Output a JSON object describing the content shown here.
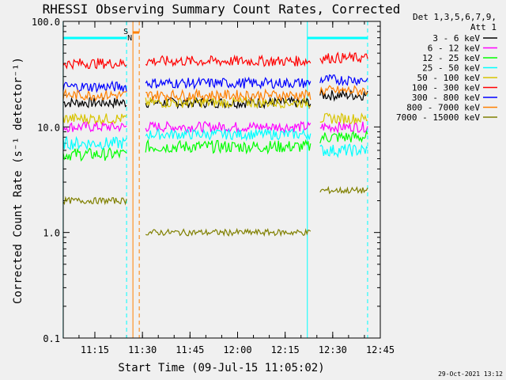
{
  "chart_data": {
    "type": "line",
    "title": "RHESSI Observing Summary Count Rates, Corrected",
    "xlabel": "Start Time (09-Jul-15 11:05:02)",
    "ylabel": "Corrected Count Rate (s⁻¹ detector⁻¹)",
    "yscale": "log",
    "ylim": [
      0.1,
      100
    ],
    "xlim": [
      "11:05:02",
      "12:45"
    ],
    "x_ticks": [
      "11:15",
      "11:30",
      "11:45",
      "12:00",
      "12:15",
      "12:30",
      "12:45"
    ],
    "y_ticks": [
      "0.1",
      "1.0",
      "10.0",
      "100.0"
    ],
    "timestamp": "29-Oct-2021 13:12",
    "legend_header": [
      "Det 1,3,5,6,7,9,",
      "Att 1"
    ],
    "flags": [
      "S",
      "N"
    ],
    "series": [
      {
        "name": "3 - 6 keV",
        "color": "#000000"
      },
      {
        "name": "6 - 12 keV",
        "color": "#ff00ff"
      },
      {
        "name": "12 - 25 keV",
        "color": "#00ff00"
      },
      {
        "name": "25 - 50 keV",
        "color": "#00ffff"
      },
      {
        "name": "50 - 100 keV",
        "color": "#d8c400"
      },
      {
        "name": "100 - 300 keV",
        "color": "#ff0000"
      },
      {
        "name": "300 - 800 keV",
        "color": "#0000ff"
      },
      {
        "name": "800 - 7000 keV",
        "color": "#ff8000"
      },
      {
        "name": "7000 - 15000 keV",
        "color": "#808000"
      }
    ],
    "segments": [
      {
        "from": "11:05",
        "to": "11:25",
        "levels": {
          "3 - 6 keV": 17,
          "6 - 12 keV": 10,
          "12 - 25 keV": 5.5,
          "25 - 50 keV": 7,
          "50 - 100 keV": 12,
          "100 - 300 keV": 40,
          "300 - 800 keV": 24,
          "800 - 7000 keV": 20,
          "7000 - 15000 keV": 2
        }
      },
      {
        "from": "11:31",
        "to": "12:23",
        "levels": {
          "3 - 6 keV": 17,
          "6 - 12 keV": 10,
          "12 - 25 keV": 6.5,
          "25 - 50 keV": 8.5,
          "50 - 100 keV": 17,
          "100 - 300 keV": 42,
          "300 - 800 keV": 26,
          "800 - 7000 keV": 20,
          "7000 - 15000 keV": 1
        }
      },
      {
        "from": "12:26",
        "to": "12:41",
        "levels": {
          "3 - 6 keV": 20,
          "6 - 12 keV": 10,
          "12 - 25 keV": 8,
          "25 - 50 keV": 6,
          "50 - 100 keV": 12,
          "100 - 300 keV": 45,
          "300 - 800 keV": 28,
          "800 - 7000 keV": 22,
          "7000 - 15000 keV": 2.5
        }
      }
    ],
    "vertical_lines": [
      {
        "time": "11:05",
        "color": "#00ffff",
        "style": "solid"
      },
      {
        "time": "11:25",
        "color": "#00ffff",
        "style": "dashed"
      },
      {
        "time": "11:27",
        "color": "#ff8000",
        "style": "solid"
      },
      {
        "time": "11:29",
        "color": "#ff8000",
        "style": "dashed"
      },
      {
        "time": "12:22",
        "color": "#00ffff",
        "style": "solid"
      },
      {
        "time": "12:41",
        "color": "#00ffff",
        "style": "dashed"
      }
    ]
  }
}
